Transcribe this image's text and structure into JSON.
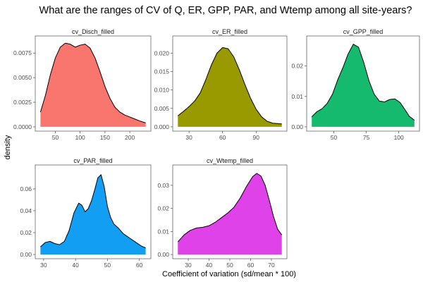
{
  "title": "What are the ranges of CV of Q, ER, GPP, PAR, and Wtemp among all site-years?",
  "xlabel": "Coefficient of variation (sd/mean * 100)",
  "ylabel": "density",
  "chart_data": [
    {
      "type": "area",
      "panel": "cv_Disch_filled",
      "color": "#F8766D",
      "xlim": [
        20,
        232
      ],
      "ylim": [
        0,
        0.0088
      ],
      "xticks": [
        50,
        100,
        150,
        200
      ],
      "yticks": [
        0.0,
        0.0025,
        0.005,
        0.0075
      ],
      "ytick_labels": [
        "0.0000",
        "0.0025",
        "0.0050",
        "0.0075"
      ],
      "x": [
        20,
        30,
        40,
        50,
        60,
        70,
        80,
        90,
        100,
        110,
        120,
        130,
        140,
        150,
        160,
        170,
        180,
        190,
        200,
        210,
        220,
        232
      ],
      "y": [
        0.0015,
        0.0032,
        0.0053,
        0.007,
        0.0081,
        0.0085,
        0.0084,
        0.0081,
        0.0083,
        0.0084,
        0.008,
        0.007,
        0.0056,
        0.0041,
        0.0029,
        0.002,
        0.0015,
        0.0012,
        0.001,
        0.0008,
        0.0006,
        0.0004
      ]
    },
    {
      "type": "area",
      "panel": "cv_ER_filled",
      "color": "#999900",
      "xlim": [
        20,
        113
      ],
      "ylim": [
        0,
        0.0235
      ],
      "xticks": [
        30,
        60,
        90
      ],
      "yticks": [
        0.0,
        0.005,
        0.01,
        0.015,
        0.02
      ],
      "ytick_labels": [
        "0.000",
        "0.005",
        "0.010",
        "0.015",
        "0.020"
      ],
      "x": [
        20,
        25,
        30,
        35,
        40,
        45,
        50,
        55,
        60,
        65,
        70,
        75,
        80,
        85,
        90,
        95,
        100,
        105,
        113
      ],
      "y": [
        0.003,
        0.0042,
        0.0055,
        0.007,
        0.0092,
        0.0128,
        0.0168,
        0.02,
        0.0215,
        0.0212,
        0.019,
        0.0155,
        0.0115,
        0.0078,
        0.0048,
        0.0027,
        0.0015,
        0.001,
        0.0008
      ]
    },
    {
      "type": "area",
      "panel": "cv_GPP_filled",
      "color": "#16BA6E",
      "xlim": [
        33,
        112
      ],
      "ylim": [
        0,
        0.0285
      ],
      "xticks": [
        50,
        75,
        100
      ],
      "yticks": [
        0.0,
        0.01,
        0.02
      ],
      "ytick_labels": [
        "0.00",
        "0.01",
        "0.02"
      ],
      "x": [
        33,
        37,
        41,
        45,
        49,
        53,
        57,
        61,
        65,
        69,
        73,
        77,
        81,
        85,
        89,
        93,
        97,
        101,
        105,
        108,
        112
      ],
      "y": [
        0.0033,
        0.005,
        0.006,
        0.0078,
        0.0108,
        0.0155,
        0.0195,
        0.024,
        0.0272,
        0.0262,
        0.0212,
        0.0152,
        0.0108,
        0.0085,
        0.0082,
        0.009,
        0.0092,
        0.008,
        0.0055,
        0.0035,
        0.0022
      ]
    },
    {
      "type": "area",
      "panel": "cv_PAR_filled",
      "color": "#129EF2",
      "xlim": [
        29,
        62
      ],
      "ylim": [
        0,
        0.078
      ],
      "xticks": [
        30,
        40,
        50,
        60
      ],
      "yticks": [
        0.0,
        0.02,
        0.04,
        0.06
      ],
      "ytick_labels": [
        "0.00",
        "0.02",
        "0.04",
        "0.06"
      ],
      "x": [
        29,
        30.5,
        32,
        33.5,
        35,
        36.5,
        38,
        39.5,
        41,
        42,
        43,
        44,
        45,
        46,
        47,
        48,
        49,
        50,
        51,
        52,
        53.5,
        55,
        57,
        59,
        60.5,
        62
      ],
      "y": [
        0.007,
        0.011,
        0.012,
        0.01,
        0.009,
        0.012,
        0.022,
        0.038,
        0.047,
        0.045,
        0.039,
        0.042,
        0.049,
        0.059,
        0.07,
        0.073,
        0.062,
        0.044,
        0.034,
        0.028,
        0.024,
        0.019,
        0.015,
        0.011,
        0.008,
        0.006
      ]
    },
    {
      "type": "area",
      "panel": "cv_Wtemp_filled",
      "color": "#E042E9",
      "xlim": [
        25,
        75
      ],
      "ylim": [
        0,
        0.037
      ],
      "xticks": [
        30,
        40,
        50,
        60,
        70
      ],
      "yticks": [
        0.0,
        0.01,
        0.02,
        0.03
      ],
      "ytick_labels": [
        "0.00",
        "0.01",
        "0.02",
        "0.03"
      ],
      "x": [
        25,
        28,
        31,
        34,
        37,
        40,
        43,
        46,
        49,
        52,
        55,
        58,
        61,
        63,
        65,
        67,
        69,
        71,
        73,
        75
      ],
      "y": [
        0.0055,
        0.0085,
        0.0105,
        0.0115,
        0.0118,
        0.0125,
        0.014,
        0.016,
        0.018,
        0.0205,
        0.0245,
        0.0295,
        0.0338,
        0.0352,
        0.034,
        0.03,
        0.0235,
        0.0165,
        0.011,
        0.0085
      ]
    }
  ]
}
